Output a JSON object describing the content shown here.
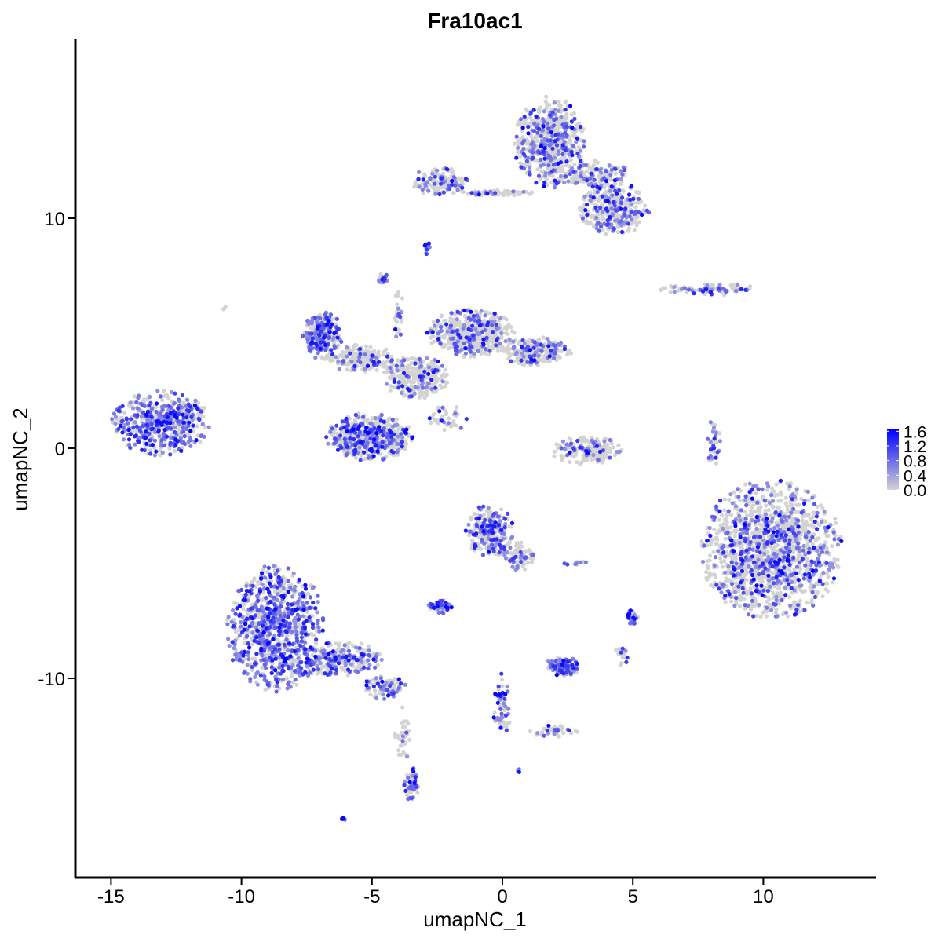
{
  "chart_data": {
    "type": "scatter",
    "title": "Fra10ac1",
    "xlabel": "umapNC_1",
    "ylabel": "umapNC_2",
    "xlim": [
      -16.4,
      14.3
    ],
    "ylim": [
      -18.7,
      17.8
    ],
    "xticks": [
      -15,
      -10,
      -5,
      0,
      5,
      10
    ],
    "yticks": [
      -10,
      0,
      10
    ],
    "grid": false,
    "legend": {
      "placement": "right",
      "range": [
        0,
        1.65
      ],
      "ticks": [
        "1.6",
        "1.2",
        "0.8",
        "0.4",
        "0.0"
      ],
      "tick_values": [
        1.6,
        1.2,
        0.8,
        0.4,
        0.0
      ],
      "low_color": "#D3D3D3",
      "high_color": "#0000FF"
    },
    "clusters": [
      {
        "cx": -13.1,
        "cy": 1.1,
        "rx": 1.8,
        "ry": 1.35,
        "n": 500,
        "frac_expressing": 0.6
      },
      {
        "cx": -11.9,
        "cy": 1.6,
        "rx": 0.6,
        "ry": 0.5,
        "n": 40,
        "frac_expressing": 0.4
      },
      {
        "cx": -8.7,
        "cy": -7.8,
        "rx": 1.8,
        "ry": 2.7,
        "n": 900,
        "frac_expressing": 0.6
      },
      {
        "cx": -6.3,
        "cy": -9.2,
        "rx": 1.6,
        "ry": 0.8,
        "n": 250,
        "frac_expressing": 0.45
      },
      {
        "cx": -4.5,
        "cy": -10.4,
        "rx": 0.8,
        "ry": 0.5,
        "n": 80,
        "frac_expressing": 0.4
      },
      {
        "cx": 10.3,
        "cy": -4.4,
        "rx": 2.6,
        "ry": 2.9,
        "n": 1500,
        "frac_expressing": 0.3
      },
      {
        "cx": 1.8,
        "cy": 13.3,
        "rx": 1.3,
        "ry": 1.9,
        "n": 600,
        "frac_expressing": 0.3
      },
      {
        "cx": 4.3,
        "cy": 10.4,
        "rx": 1.3,
        "ry": 1.1,
        "n": 350,
        "frac_expressing": 0.3
      },
      {
        "cx": 3.6,
        "cy": 11.9,
        "rx": 1.2,
        "ry": 0.6,
        "n": 150,
        "frac_expressing": 0.3
      },
      {
        "cx": -2.4,
        "cy": 11.6,
        "rx": 1.1,
        "ry": 0.6,
        "n": 150,
        "frac_expressing": 0.3
      },
      {
        "cx": -0.2,
        "cy": 11.1,
        "rx": 1.3,
        "ry": 0.15,
        "n": 60,
        "frac_expressing": 0.3
      },
      {
        "cx": -6.9,
        "cy": 4.9,
        "rx": 0.75,
        "ry": 1.0,
        "n": 250,
        "frac_expressing": 0.55
      },
      {
        "cx": -5.1,
        "cy": 0.5,
        "rx": 1.6,
        "ry": 1.0,
        "n": 550,
        "frac_expressing": 0.4
      },
      {
        "cx": -1.2,
        "cy": 5.0,
        "rx": 1.6,
        "ry": 1.0,
        "n": 500,
        "frac_expressing": 0.25
      },
      {
        "cx": 1.3,
        "cy": 4.2,
        "rx": 1.3,
        "ry": 0.6,
        "n": 250,
        "frac_expressing": 0.25
      },
      {
        "cx": -3.3,
        "cy": 3.1,
        "rx": 1.2,
        "ry": 0.9,
        "n": 300,
        "frac_expressing": 0.2
      },
      {
        "cx": -5.4,
        "cy": 3.9,
        "rx": 1.2,
        "ry": 0.6,
        "n": 180,
        "frac_expressing": 0.25
      },
      {
        "cx": 3.2,
        "cy": -0.1,
        "rx": 1.3,
        "ry": 0.6,
        "n": 200,
        "frac_expressing": 0.2
      },
      {
        "cx": -0.5,
        "cy": -3.6,
        "rx": 0.9,
        "ry": 1.1,
        "n": 250,
        "frac_expressing": 0.45
      },
      {
        "cx": 0.6,
        "cy": -4.7,
        "rx": 0.6,
        "ry": 0.6,
        "n": 80,
        "frac_expressing": 0.3
      },
      {
        "cx": -2.4,
        "cy": -6.9,
        "rx": 0.45,
        "ry": 0.3,
        "n": 60,
        "frac_expressing": 0.7
      },
      {
        "cx": 2.3,
        "cy": -9.5,
        "rx": 0.7,
        "ry": 0.4,
        "n": 120,
        "frac_expressing": 0.6
      },
      {
        "cx": -3.5,
        "cy": -14.6,
        "rx": 0.3,
        "ry": 0.7,
        "n": 60,
        "frac_expressing": 0.6
      },
      {
        "cx": 7.9,
        "cy": 6.9,
        "rx": 1.8,
        "ry": 0.25,
        "n": 90,
        "frac_expressing": 0.35
      },
      {
        "cx": 8.1,
        "cy": 0.3,
        "rx": 0.25,
        "ry": 1.0,
        "n": 40,
        "frac_expressing": 0.4
      },
      {
        "cx": 0.0,
        "cy": -11.1,
        "rx": 0.35,
        "ry": 1.3,
        "n": 70,
        "frac_expressing": 0.5
      },
      {
        "cx": 2.0,
        "cy": -12.3,
        "rx": 0.9,
        "ry": 0.25,
        "n": 40,
        "frac_expressing": 0.4
      },
      {
        "cx": 5.0,
        "cy": -7.3,
        "rx": 0.2,
        "ry": 0.35,
        "n": 30,
        "frac_expressing": 0.6
      },
      {
        "cx": -6.1,
        "cy": -16.1,
        "rx": 0.1,
        "ry": 0.08,
        "n": 8,
        "frac_expressing": 1.0
      },
      {
        "cx": -4.6,
        "cy": 7.4,
        "rx": 0.2,
        "ry": 0.25,
        "n": 20,
        "frac_expressing": 0.5
      },
      {
        "cx": -2.9,
        "cy": 8.7,
        "rx": 0.15,
        "ry": 0.3,
        "n": 15,
        "frac_expressing": 0.4
      },
      {
        "cx": -4.0,
        "cy": 6.0,
        "rx": 0.2,
        "ry": 1.2,
        "n": 30,
        "frac_expressing": 0.3
      },
      {
        "cx": -2.0,
        "cy": 1.3,
        "rx": 0.8,
        "ry": 0.6,
        "n": 40,
        "frac_expressing": 0.3
      },
      {
        "cx": -3.8,
        "cy": -12.5,
        "rx": 0.3,
        "ry": 1.2,
        "n": 40,
        "frac_expressing": 0.1
      },
      {
        "cx": 2.9,
        "cy": -5.0,
        "rx": 0.5,
        "ry": 0.1,
        "n": 15,
        "frac_expressing": 0.3
      },
      {
        "cx": 4.6,
        "cy": -9.0,
        "rx": 0.3,
        "ry": 0.5,
        "n": 15,
        "frac_expressing": 0.3
      },
      {
        "cx": -10.7,
        "cy": 6.1,
        "rx": 0.1,
        "ry": 0.1,
        "n": 3,
        "frac_expressing": 0.0
      },
      {
        "cx": 0.6,
        "cy": -14.0,
        "rx": 0.1,
        "ry": 0.1,
        "n": 4,
        "frac_expressing": 1.0
      }
    ]
  }
}
